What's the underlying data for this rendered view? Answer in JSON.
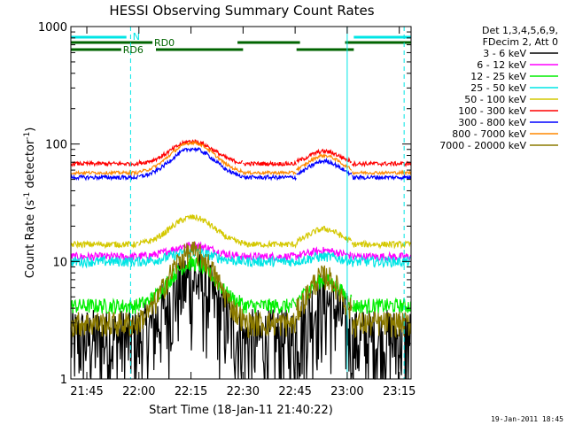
{
  "chart_data": {
    "type": "line",
    "title": "HESSI Observing Summary Count Rates",
    "xlabel": "Start Time (18-Jan-11 21:40:22)",
    "ylabel": "Count Rate (s",
    "ylabel_sup1": "-1",
    "ylabel_mid": " detector",
    "ylabel_sup2": "-1",
    "ylabel_end": ")",
    "y_scale": "log",
    "ylim": [
      1,
      1000
    ],
    "xlim_minutes": [
      0,
      98
    ],
    "x_ticks": [
      {
        "label": "21:45",
        "min": 4.6
      },
      {
        "label": "22:00",
        "min": 19.6
      },
      {
        "label": "22:15",
        "min": 34.6
      },
      {
        "label": "22:30",
        "min": 49.6
      },
      {
        "label": "22:45",
        "min": 64.6
      },
      {
        "label": "23:00",
        "min": 79.6
      },
      {
        "label": "23:15",
        "min": 94.6
      }
    ],
    "y_ticks": [
      {
        "label": "1",
        "value": 1
      },
      {
        "label": "10",
        "value": 10
      },
      {
        "label": "100",
        "value": 100
      },
      {
        "label": "1000",
        "value": 1000
      }
    ],
    "legend_header": [
      "Det 1,3,4,5,6,9,",
      "FDecim 2, Att 0"
    ],
    "legend_placement": "right",
    "series": [
      {
        "name": "3 - 6 keV",
        "color": "#000000"
      },
      {
        "name": "6 - 12 keV",
        "color": "#ff00ff"
      },
      {
        "name": "12 - 25 keV",
        "color": "#00ee00"
      },
      {
        "name": "25 - 50 keV",
        "color": "#00e5e5"
      },
      {
        "name": "50 - 100 keV",
        "color": "#d4c800"
      },
      {
        "name": "100 - 300 keV",
        "color": "#ff0000"
      },
      {
        "name": "300 - 800 keV",
        "color": "#0000ff"
      },
      {
        "name": "800 - 7000 keV",
        "color": "#ff8800"
      },
      {
        "name": "7000 - 20000 keV",
        "color": "#8b7a00"
      }
    ],
    "flag_labels": {
      "night": "N",
      "rd0": "RD0",
      "rd6": "RD6"
    },
    "flag_colors": {
      "night": "#00e5e5",
      "decim": "#006400"
    }
  },
  "footer": {
    "date": "19-Jan-2011 18:45"
  }
}
